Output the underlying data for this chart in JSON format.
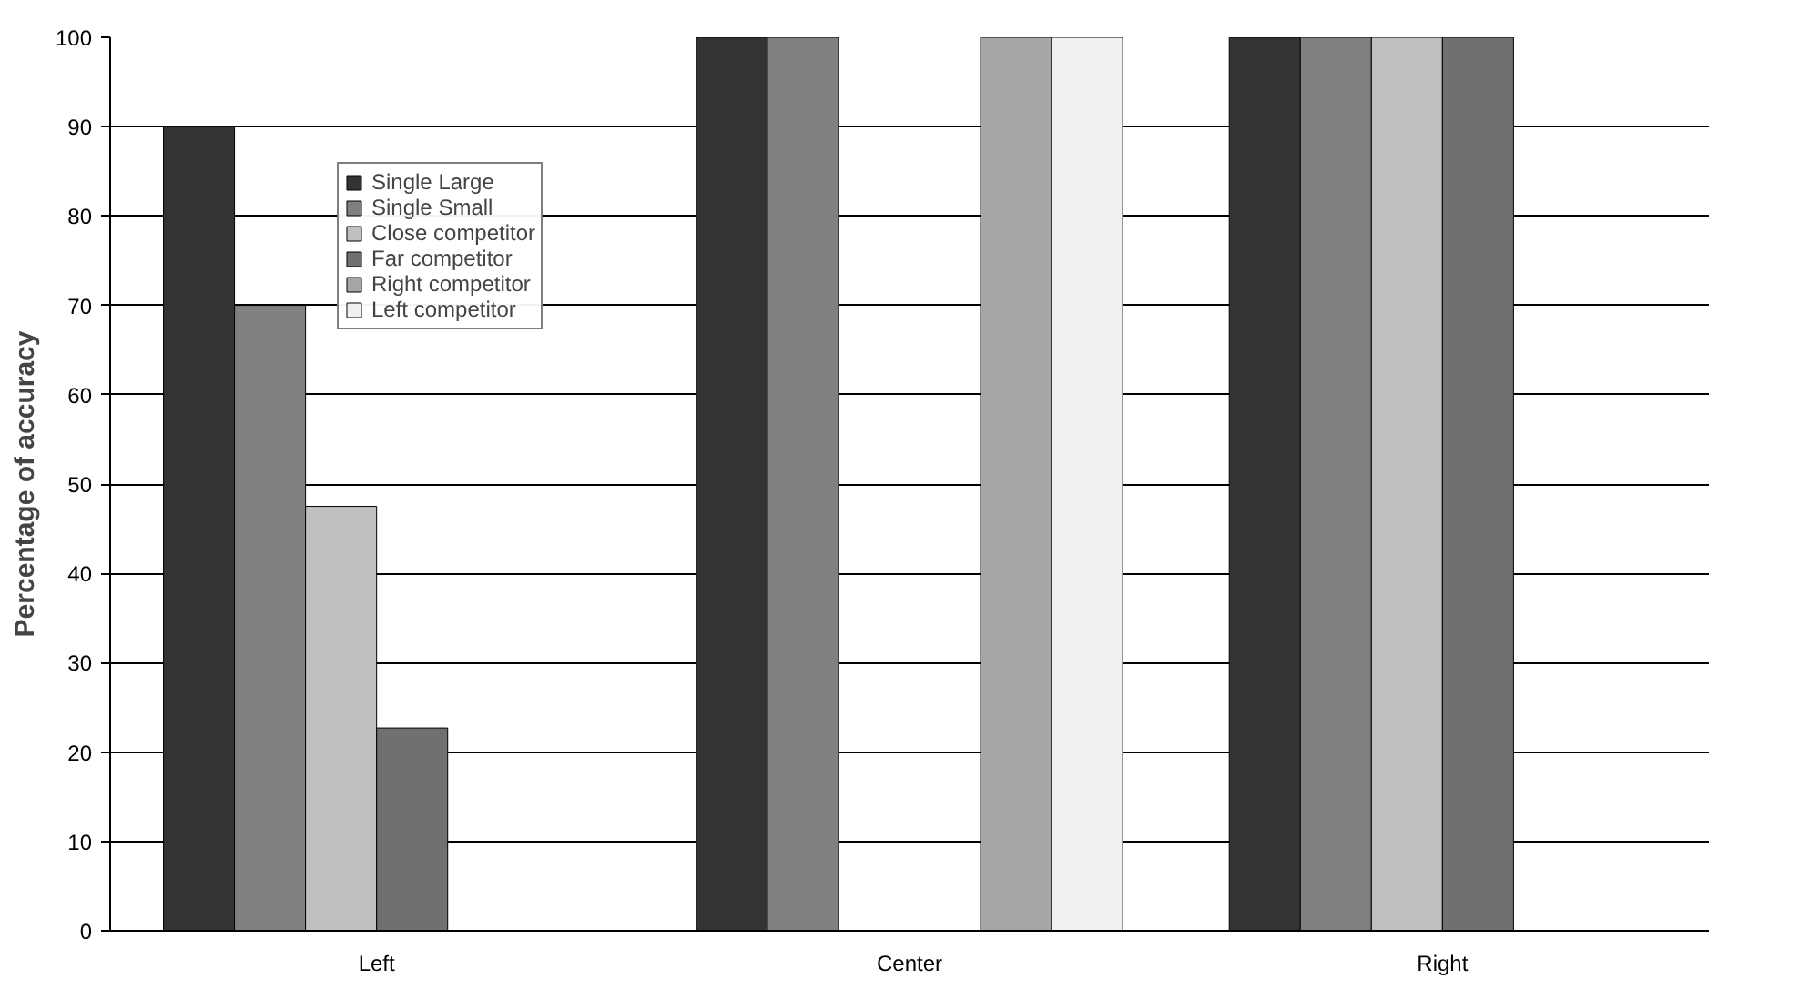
{
  "chart_data": {
    "type": "bar",
    "ylabel": "Percentage of accuracy",
    "categories": [
      "Left",
      "Center",
      "Right"
    ],
    "series": [
      {
        "name": "Single Large",
        "color": "#333333",
        "values": [
          90,
          100,
          100
        ]
      },
      {
        "name": "Single Small",
        "color": "#808080",
        "values": [
          70,
          100,
          100
        ]
      },
      {
        "name": "Close competitor",
        "color": "#c0c0c0",
        "values": [
          47.5,
          null,
          100
        ]
      },
      {
        "name": "Far competitor",
        "color": "#707070",
        "values": [
          22.7,
          null,
          100
        ]
      },
      {
        "name": "Right competitor",
        "color": "#a6a6a6",
        "values": [
          null,
          100,
          null
        ]
      },
      {
        "name": "Left competitor",
        "color": "#f0f0f0",
        "values": [
          null,
          100,
          null
        ]
      }
    ],
    "ylim": [
      0,
      100
    ],
    "yticks": [
      0,
      10,
      20,
      30,
      40,
      50,
      60,
      70,
      80,
      90,
      100
    ],
    "grid": "y",
    "legend": "top left"
  }
}
